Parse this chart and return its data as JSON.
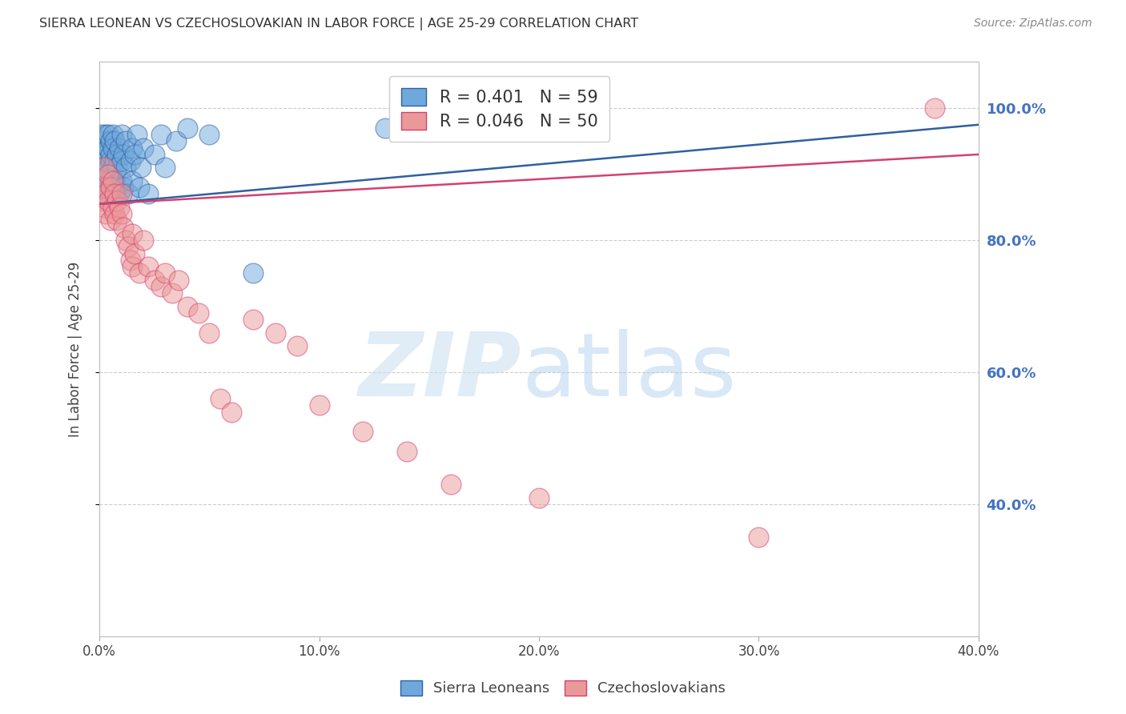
{
  "title": "SIERRA LEONEAN VS CZECHOSLOVAKIAN IN LABOR FORCE | AGE 25-29 CORRELATION CHART",
  "source": "Source: ZipAtlas.com",
  "ylabel": "In Labor Force | Age 25-29",
  "right_ytick_labels": [
    "100.0%",
    "80.0%",
    "60.0%",
    "40.0%"
  ],
  "right_ytick_values": [
    1.0,
    0.8,
    0.6,
    0.4
  ],
  "xlim": [
    0.0,
    0.4
  ],
  "ylim": [
    0.2,
    1.07
  ],
  "xtick_labels": [
    "0.0%",
    "10.0%",
    "20.0%",
    "30.0%",
    "40.0%"
  ],
  "xtick_values": [
    0.0,
    0.1,
    0.2,
    0.3,
    0.4
  ],
  "legend_blue_label": "R = 0.401   N = 59",
  "legend_pink_label": "R = 0.046   N = 50",
  "blue_color": "#6fa8dc",
  "pink_color": "#ea9999",
  "blue_line_color": "#3060a0",
  "pink_line_color": "#d44070",
  "blue_scatter_x": [
    0.001,
    0.001,
    0.001,
    0.001,
    0.002,
    0.002,
    0.002,
    0.002,
    0.003,
    0.003,
    0.003,
    0.003,
    0.003,
    0.004,
    0.004,
    0.004,
    0.004,
    0.005,
    0.005,
    0.005,
    0.005,
    0.005,
    0.006,
    0.006,
    0.006,
    0.006,
    0.007,
    0.007,
    0.007,
    0.008,
    0.008,
    0.008,
    0.009,
    0.009,
    0.01,
    0.01,
    0.01,
    0.011,
    0.011,
    0.012,
    0.012,
    0.013,
    0.014,
    0.015,
    0.015,
    0.016,
    0.017,
    0.018,
    0.019,
    0.02,
    0.022,
    0.025,
    0.028,
    0.03,
    0.035,
    0.04,
    0.05,
    0.07,
    0.13
  ],
  "blue_scatter_y": [
    0.9,
    0.93,
    0.96,
    0.88,
    0.91,
    0.94,
    0.87,
    0.95,
    0.92,
    0.89,
    0.96,
    0.93,
    0.88,
    0.91,
    0.94,
    0.87,
    0.96,
    0.92,
    0.89,
    0.95,
    0.88,
    0.93,
    0.91,
    0.96,
    0.87,
    0.94,
    0.92,
    0.89,
    0.95,
    0.93,
    0.88,
    0.91,
    0.94,
    0.87,
    0.92,
    0.96,
    0.89,
    0.93,
    0.88,
    0.91,
    0.95,
    0.87,
    0.92,
    0.94,
    0.89,
    0.93,
    0.96,
    0.88,
    0.91,
    0.94,
    0.87,
    0.93,
    0.96,
    0.91,
    0.95,
    0.97,
    0.96,
    0.75,
    0.97
  ],
  "pink_scatter_x": [
    0.001,
    0.001,
    0.002,
    0.002,
    0.002,
    0.003,
    0.003,
    0.004,
    0.004,
    0.005,
    0.005,
    0.006,
    0.006,
    0.007,
    0.007,
    0.008,
    0.008,
    0.009,
    0.01,
    0.01,
    0.011,
    0.012,
    0.013,
    0.014,
    0.015,
    0.015,
    0.016,
    0.018,
    0.02,
    0.022,
    0.025,
    0.028,
    0.03,
    0.033,
    0.036,
    0.04,
    0.045,
    0.05,
    0.055,
    0.06,
    0.07,
    0.08,
    0.09,
    0.1,
    0.12,
    0.14,
    0.16,
    0.2,
    0.3,
    0.38
  ],
  "pink_scatter_y": [
    0.86,
    0.89,
    0.85,
    0.88,
    0.91,
    0.84,
    0.87,
    0.86,
    0.9,
    0.83,
    0.88,
    0.85,
    0.89,
    0.84,
    0.87,
    0.83,
    0.86,
    0.85,
    0.84,
    0.87,
    0.82,
    0.8,
    0.79,
    0.77,
    0.81,
    0.76,
    0.78,
    0.75,
    0.8,
    0.76,
    0.74,
    0.73,
    0.75,
    0.72,
    0.74,
    0.7,
    0.69,
    0.66,
    0.56,
    0.54,
    0.68,
    0.66,
    0.64,
    0.55,
    0.51,
    0.48,
    0.43,
    0.41,
    0.35,
    1.0
  ]
}
